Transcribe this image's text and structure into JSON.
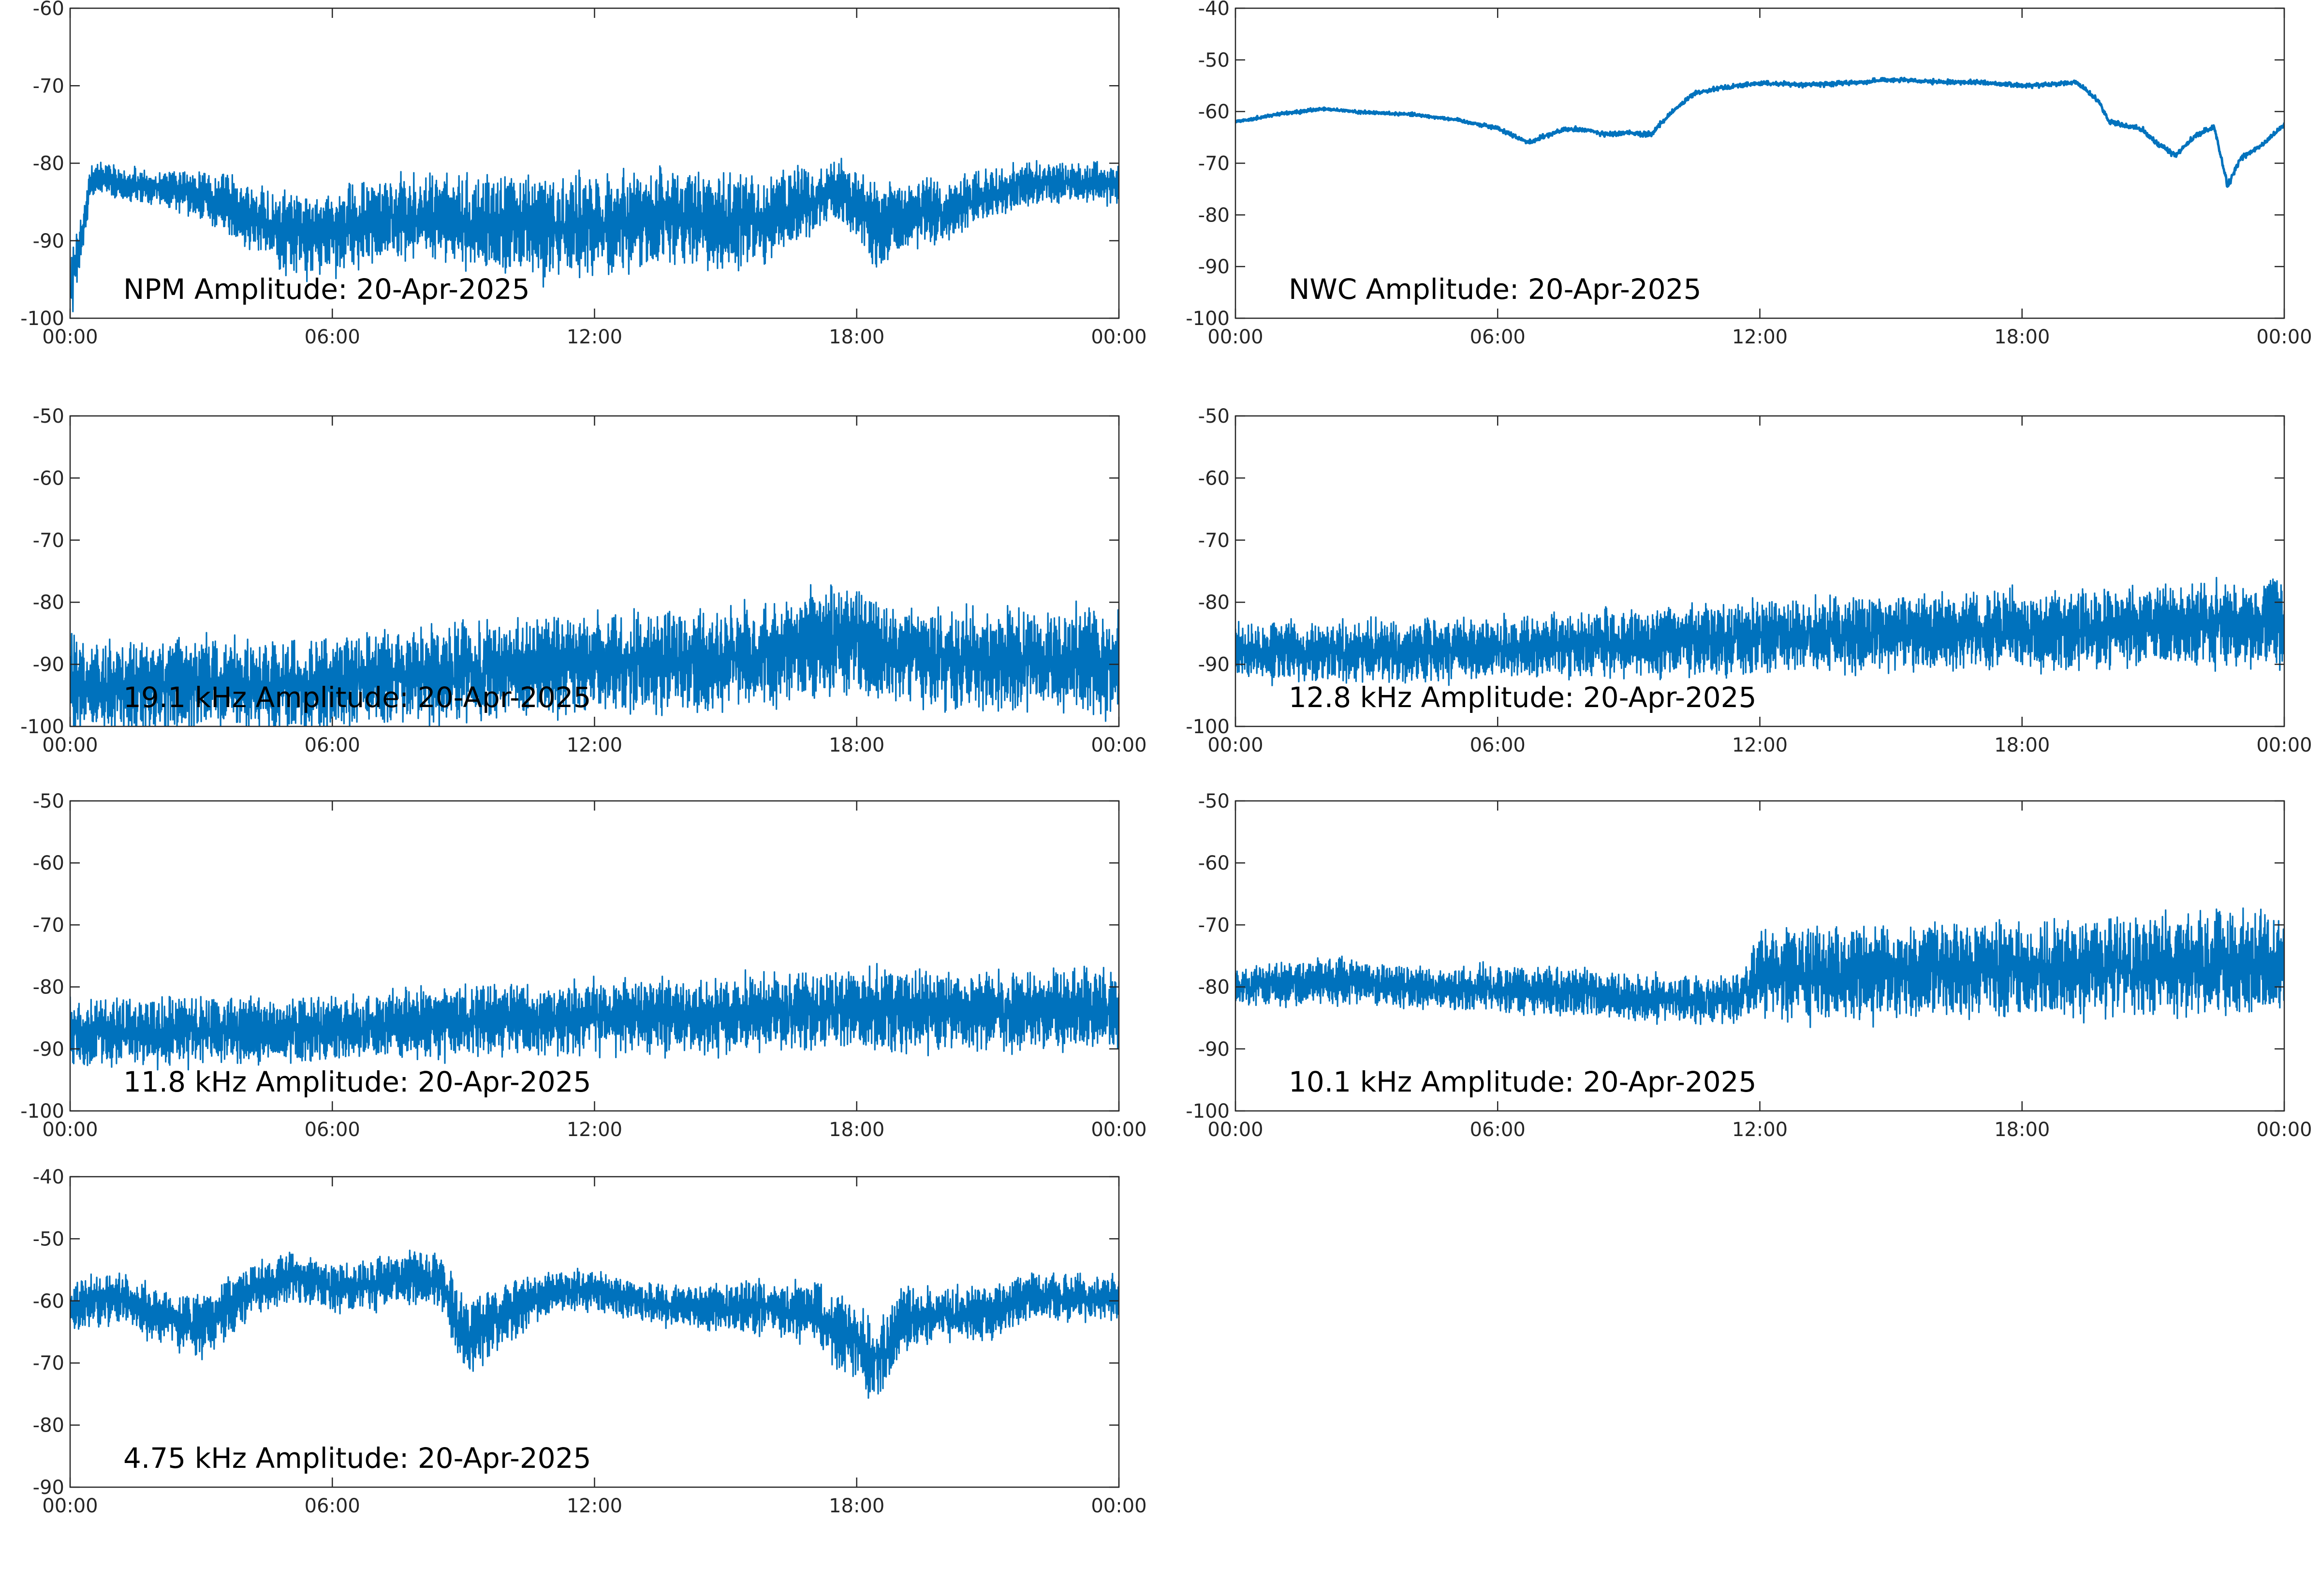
{
  "figure": {
    "background": "#ffffff",
    "line_color": "#0072bd",
    "axes_color": "#262626"
  },
  "chart_data": [
    {
      "type": "line",
      "title": "NPM Amplitude: 20-Apr-2025",
      "x_ticks": [
        "00:00",
        "06:00",
        "12:00",
        "18:00",
        "00:00"
      ],
      "xlim": [
        "00:00",
        "24:00"
      ],
      "ylim": [
        -100,
        -60
      ],
      "y_ticks": [
        -60,
        -70,
        -80,
        -90,
        -100
      ],
      "grid": false,
      "series": [
        {
          "x": [
            "00:00",
            "00:30",
            "01:00",
            "02:00",
            "03:00",
            "04:00",
            "05:00",
            "06:00",
            "07:00",
            "08:00",
            "09:00",
            "10:00",
            "11:00",
            "12:00",
            "13:00",
            "14:00",
            "15:00",
            "16:00",
            "17:00",
            "17:45",
            "18:30",
            "19:00",
            "20:00",
            "21:00",
            "22:00",
            "23:00",
            "24:00"
          ],
          "center": [
            -97,
            -82,
            -82.5,
            -83,
            -84,
            -86.5,
            -89,
            -89,
            -87.5,
            -87,
            -87.5,
            -88,
            -88.5,
            -88,
            -87,
            -87,
            -87.5,
            -87,
            -84.5,
            -84,
            -88.5,
            -86.5,
            -86.5,
            -84,
            -82.5,
            -82.5,
            -82.5
          ],
          "spread": [
            4,
            2,
            2,
            2,
            3,
            4,
            5,
            5,
            5,
            5,
            5.5,
            6,
            6,
            6,
            6,
            6,
            6,
            5,
            4,
            4,
            5,
            4,
            4,
            3,
            2.5,
            2.5,
            2.5
          ]
        }
      ]
    },
    {
      "type": "line",
      "title": "NWC Amplitude: 20-Apr-2025",
      "x_ticks": [
        "00:00",
        "06:00",
        "12:00",
        "18:00",
        "00:00"
      ],
      "xlim": [
        "00:00",
        "24:00"
      ],
      "ylim": [
        -100,
        -40
      ],
      "y_ticks": [
        -40,
        -50,
        -60,
        -70,
        -80,
        -90,
        -100
      ],
      "grid": false,
      "series": [
        {
          "x": [
            "00:00",
            "01:00",
            "02:00",
            "03:00",
            "04:00",
            "05:00",
            "06:00",
            "06:42",
            "07:00",
            "07:30",
            "08:00",
            "08:30",
            "09:00",
            "09:30",
            "10:00",
            "10:30",
            "11:00",
            "12:00",
            "13:00",
            "14:00",
            "15:00",
            "16:00",
            "17:00",
            "18:00",
            "19:00",
            "19:15",
            "19:45",
            "20:00",
            "20:45",
            "21:00",
            "21:30",
            "22:00",
            "22:24",
            "22:42",
            "23:00",
            "23:30",
            "24:00"
          ],
          "center": [
            -62,
            -60.5,
            -59.5,
            -60.2,
            -60.5,
            -61.5,
            -63.2,
            -66,
            -65,
            -63.5,
            -63.5,
            -64.5,
            -64,
            -64.5,
            -60,
            -56.5,
            -55.5,
            -54.5,
            -54.8,
            -54.5,
            -53.8,
            -54.3,
            -54.3,
            -55,
            -54.5,
            -54.3,
            -58,
            -62,
            -63.5,
            -65.5,
            -68.5,
            -64.5,
            -63,
            -74.5,
            -69,
            -66.5,
            -62.5
          ],
          "spread": [
            0.6,
            0.6,
            0.6,
            0.6,
            0.6,
            0.6,
            0.8,
            0.8,
            0.8,
            0.8,
            0.8,
            1,
            1,
            1,
            0.8,
            0.8,
            0.8,
            0.8,
            0.8,
            0.8,
            0.8,
            0.8,
            0.8,
            0.8,
            0.8,
            0.8,
            0.8,
            1,
            1,
            1,
            1,
            1,
            1,
            1.2,
            1,
            0.8,
            0.8
          ]
        }
      ]
    },
    {
      "type": "line",
      "title": "19.1 kHz Amplitude: 20-Apr-2025",
      "x_ticks": [
        "00:00",
        "06:00",
        "12:00",
        "18:00",
        "00:00"
      ],
      "xlim": [
        "00:00",
        "24:00"
      ],
      "ylim": [
        -100,
        -50
      ],
      "y_ticks": [
        -50,
        -60,
        -70,
        -80,
        -90,
        -100
      ],
      "grid": false,
      "series": [
        {
          "x": [
            "00:00",
            "03:00",
            "06:00",
            "09:00",
            "12:00",
            "15:00",
            "17:00",
            "18:00",
            "19:00",
            "21:00",
            "24:00"
          ],
          "center": [
            -93.5,
            -93.5,
            -93,
            -91.5,
            -90,
            -89.5,
            -87,
            -86,
            -88.5,
            -89.5,
            -89.5
          ],
          "spread": [
            7,
            7,
            7,
            7.5,
            7.5,
            7.5,
            8,
            8,
            7.5,
            7.5,
            7.5
          ]
        }
      ]
    },
    {
      "type": "line",
      "title": "12.8 kHz Amplitude: 20-Apr-2025",
      "x_ticks": [
        "00:00",
        "06:00",
        "12:00",
        "18:00",
        "00:00"
      ],
      "xlim": [
        "00:00",
        "24:00"
      ],
      "ylim": [
        -100,
        -50
      ],
      "y_ticks": [
        -50,
        -60,
        -70,
        -80,
        -90,
        -100
      ],
      "grid": false,
      "series": [
        {
          "x": [
            "00:00",
            "03:00",
            "06:00",
            "09:00",
            "12:00",
            "15:00",
            "18:00",
            "21:00",
            "24:00"
          ],
          "center": [
            -88,
            -88,
            -87.5,
            -86.5,
            -85.5,
            -85,
            -84.5,
            -84,
            -83.5
          ],
          "spread": [
            4.5,
            4.5,
            4.5,
            5,
            5.5,
            5.5,
            6,
            6,
            6.5
          ]
        }
      ]
    },
    {
      "type": "line",
      "title": "11.8 kHz Amplitude: 20-Apr-2025",
      "x_ticks": [
        "00:00",
        "06:00",
        "12:00",
        "18:00",
        "00:00"
      ],
      "xlim": [
        "00:00",
        "24:00"
      ],
      "ylim": [
        -100,
        -50
      ],
      "y_ticks": [
        -50,
        -60,
        -70,
        -80,
        -90,
        -100
      ],
      "grid": false,
      "series": [
        {
          "x": [
            "00:00",
            "03:00",
            "06:00",
            "09:00",
            "12:00",
            "15:00",
            "18:00",
            "21:00",
            "24:00"
          ],
          "center": [
            -87.5,
            -87,
            -87,
            -85.5,
            -85,
            -84.5,
            -83.5,
            -84,
            -83.5
          ],
          "spread": [
            5,
            5,
            5,
            5.5,
            5.5,
            5.5,
            6,
            6,
            6
          ]
        }
      ]
    },
    {
      "type": "line",
      "title": "10.1 kHz Amplitude: 20-Apr-2025",
      "x_ticks": [
        "00:00",
        "06:00",
        "12:00",
        "18:00",
        "00:00"
      ],
      "xlim": [
        "00:00",
        "24:00"
      ],
      "ylim": [
        -100,
        -50
      ],
      "y_ticks": [
        -50,
        -60,
        -70,
        -80,
        -90,
        -100
      ],
      "grid": false,
      "series": [
        {
          "x": [
            "00:00",
            "02:00",
            "04:00",
            "06:00",
            "08:00",
            "10:00",
            "11:30",
            "12:00",
            "15:00",
            "18:00",
            "21:00",
            "24:00"
          ],
          "center": [
            -80,
            -79,
            -80,
            -80.5,
            -81,
            -82,
            -82,
            -78,
            -77.5,
            -77,
            -76.5,
            -76.5
          ],
          "spread": [
            3,
            3.5,
            3,
            3.5,
            3.5,
            3.5,
            3.5,
            6.5,
            7,
            7,
            7.5,
            7.5
          ]
        }
      ]
    },
    {
      "type": "line",
      "title": "4.75 kHz Amplitude: 20-Apr-2025",
      "x_ticks": [
        "00:00",
        "06:00",
        "12:00",
        "18:00",
        "00:00"
      ],
      "xlim": [
        "00:00",
        "24:00"
      ],
      "ylim": [
        -90,
        -40
      ],
      "y_ticks": [
        -40,
        -50,
        -60,
        -70,
        -80,
        -90
      ],
      "grid": false,
      "series": [
        {
          "x": [
            "00:00",
            "01:00",
            "02:00",
            "03:00",
            "04:00",
            "05:00",
            "06:00",
            "07:00",
            "08:00",
            "08:30",
            "09:00",
            "10:00",
            "11:00",
            "12:00",
            "13:00",
            "14:00",
            "15:00",
            "16:00",
            "17:00",
            "18:00",
            "18:30",
            "19:00",
            "20:00",
            "21:00",
            "22:00",
            "23:00",
            "24:00"
          ],
          "center": [
            -61,
            -59,
            -62.5,
            -64,
            -59,
            -56,
            -58,
            -57,
            -56,
            -57,
            -66,
            -62,
            -58.5,
            -58.5,
            -60,
            -61,
            -61,
            -61,
            -62,
            -67,
            -70,
            -63,
            -62,
            -62,
            -59,
            -59.5,
            -59.5
          ],
          "spread": [
            4,
            4,
            4,
            5,
            4,
            4,
            3.5,
            4,
            4,
            4,
            6,
            5,
            3,
            3,
            3,
            3,
            3.5,
            4,
            5,
            6,
            6,
            5,
            4,
            4,
            3.5,
            3.5,
            3.5
          ]
        }
      ]
    }
  ]
}
